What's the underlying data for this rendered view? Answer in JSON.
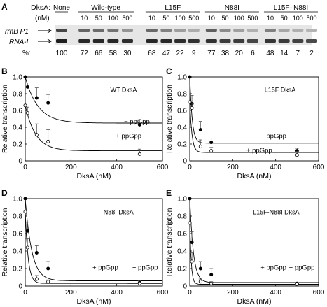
{
  "gel": {
    "panel_letter": "A",
    "dksa_label": "DksA:",
    "nm_label": "(nM)",
    "group_names": [
      "None",
      "Wild-type",
      "L15F",
      "N88I",
      "L15F–N88I"
    ],
    "lane_group": [
      0,
      1,
      1,
      1,
      1,
      2,
      2,
      2,
      2,
      3,
      3,
      3,
      3,
      4,
      4,
      4,
      4
    ],
    "concentrations": [
      "",
      "10",
      "50",
      "100",
      "500",
      "10",
      "50",
      "100",
      "500",
      "10",
      "50",
      "100",
      "500",
      "10",
      "50",
      "100",
      "500"
    ],
    "band_labels": [
      "rrnB P1",
      "RNA-I"
    ],
    "percent_label": "%:",
    "percents": [
      "100",
      "72",
      "66",
      "58",
      "30",
      "68",
      "47",
      "22",
      "9",
      "77",
      "38",
      "20",
      "6",
      "48",
      "14",
      "7",
      "2"
    ],
    "percent_values": [
      100,
      72,
      66,
      58,
      30,
      68,
      47,
      22,
      9,
      77,
      38,
      20,
      6,
      48,
      14,
      7,
      2
    ],
    "rna_i_intensity": [
      1.0,
      0.95,
      0.95,
      0.95,
      0.92,
      0.95,
      0.95,
      0.92,
      0.9,
      0.9,
      0.85,
      0.85,
      0.8,
      0.88,
      0.85,
      0.82,
      0.78
    ]
  },
  "chart_data": [
    {
      "type": "scatter",
      "panel_letter": "B",
      "title": "WT DksA",
      "xlabel": "DksA (nM)",
      "ylabel": "Relative transcription",
      "xlim": [
        0,
        600
      ],
      "ylim": [
        0,
        1.0
      ],
      "xticks": [
        "0",
        "200",
        "400",
        "600"
      ],
      "yticks": [
        "0",
        "0.2",
        "0.4",
        "0.6",
        "0.8",
        "1.0"
      ],
      "series": [
        {
          "name": "− ppGpp",
          "filled": true,
          "x": [
            0,
            10,
            50,
            100,
            500
          ],
          "y": [
            1.0,
            0.88,
            0.75,
            0.69,
            0.43
          ],
          "err": [
            0,
            0.05,
            0.12,
            0.1,
            0.06
          ],
          "fit": {
            "plateau": 0.45,
            "k": 0.018
          }
        },
        {
          "name": "+ ppGpp",
          "filled": false,
          "x": [
            0,
            10,
            50,
            100,
            500
          ],
          "y": [
            0.66,
            0.57,
            0.31,
            0.23,
            0.08
          ],
          "err": [
            0,
            0.07,
            0.13,
            0.14,
            0.06
          ],
          "fit": {
            "plateau": 0.12,
            "k": 0.022,
            "y0": 0.66
          }
        }
      ],
      "labels": [
        "− ppGpp",
        "+ ppGpp"
      ]
    },
    {
      "type": "scatter",
      "panel_letter": "C",
      "title": "L15F DksA",
      "xlabel": "DksA (nM)",
      "ylabel": "Relative transcription",
      "xlim": [
        0,
        600
      ],
      "ylim": [
        0,
        1.0
      ],
      "xticks": [
        "0",
        "200",
        "400",
        "600"
      ],
      "yticks": [
        "0",
        "0.2",
        "0.4",
        "0.6",
        "0.8",
        "1.0"
      ],
      "series": [
        {
          "name": "− ppGpp",
          "filled": true,
          "x": [
            0,
            10,
            50,
            100,
            500
          ],
          "y": [
            1.0,
            0.68,
            0.37,
            0.22,
            0.12
          ],
          "err": [
            0,
            0.1,
            0.1,
            0.05,
            0.03
          ],
          "fit": {
            "plateau": 0.21,
            "k": 0.09
          }
        },
        {
          "name": "+ ppGpp",
          "filled": false,
          "x": [
            0,
            10,
            50,
            100,
            500
          ],
          "y": [
            0.7,
            0.63,
            0.17,
            0.12,
            0.07
          ],
          "err": [
            0,
            0.06,
            0.08,
            0.04,
            0.04
          ],
          "fit": {
            "plateau": 0.1,
            "k": 0.1,
            "y0": 0.7
          }
        }
      ],
      "labels": [
        "− ppGpp",
        "+ ppGpp"
      ]
    },
    {
      "type": "scatter",
      "panel_letter": "D",
      "title": "N88I DksA",
      "xlabel": "DksA (nM)",
      "ylabel": "Relative transcription",
      "xlim": [
        0,
        600
      ],
      "ylim": [
        0,
        1.0
      ],
      "xticks": [
        "0",
        "200",
        "400",
        "600"
      ],
      "yticks": [
        "0",
        "0.2",
        "0.4",
        "0.6",
        "0.8",
        "1.0"
      ],
      "series": [
        {
          "name": "− ppGpp",
          "filled": true,
          "x": [
            0,
            10,
            50,
            100,
            500
          ],
          "y": [
            1.0,
            0.63,
            0.38,
            0.2,
            0.04
          ],
          "err": [
            0,
            0.1,
            0.08,
            0.08,
            0.02
          ],
          "fit": {
            "plateau": 0.06,
            "k": 0.035
          }
        },
        {
          "name": "+ ppGpp",
          "filled": false,
          "x": [
            0,
            10,
            50,
            100,
            500
          ],
          "y": [
            0.85,
            0.44,
            0.08,
            0.05,
            0.03
          ],
          "err": [
            0,
            0.1,
            0.04,
            0.02,
            0.01
          ],
          "fit": {
            "plateau": 0.03,
            "k": 0.08,
            "y0": 0.85
          }
        }
      ],
      "labels": [
        "+ ppGpp",
        "− ppGpp"
      ]
    },
    {
      "type": "scatter",
      "panel_letter": "E",
      "title": "L15F-N88I DksA",
      "xlabel": "DksA (nM)",
      "ylabel": "Relative transcription",
      "xlim": [
        0,
        600
      ],
      "ylim": [
        0,
        1.0
      ],
      "xticks": [
        "0",
        "200",
        "400",
        "600"
      ],
      "yticks": [
        "0",
        "0.2",
        "0.4",
        "0.6",
        "0.8",
        "1.0"
      ],
      "series": [
        {
          "name": "− ppGpp",
          "filled": true,
          "x": [
            0,
            10,
            50,
            100,
            500
          ],
          "y": [
            1.0,
            0.5,
            0.2,
            0.13,
            0.03
          ],
          "err": [
            0,
            0.12,
            0.08,
            0.07,
            0.01
          ],
          "fit": {
            "plateau": 0.04,
            "k": 0.06
          }
        },
        {
          "name": "+ ppGpp",
          "filled": false,
          "x": [
            0,
            10,
            50,
            100,
            500
          ],
          "y": [
            0.72,
            0.28,
            0.05,
            0.03,
            0.02
          ],
          "err": [
            0,
            0.1,
            0.03,
            0.02,
            0.01
          ],
          "fit": {
            "plateau": 0.02,
            "k": 0.15,
            "y0": 0.72
          }
        }
      ],
      "labels": [
        "+ ppGpp",
        "− ppGpp"
      ]
    }
  ]
}
